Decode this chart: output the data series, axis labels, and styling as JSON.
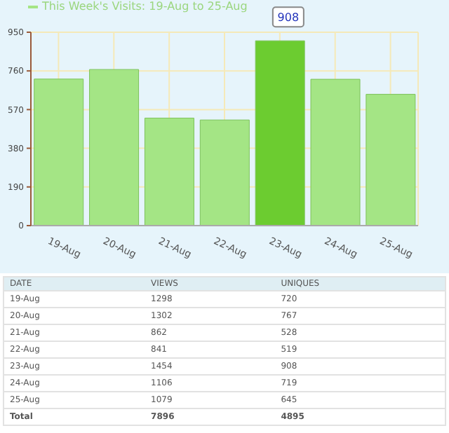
{
  "chart_data": [
    {
      "type": "bar",
      "categories": [
        "19-Aug",
        "20-Aug",
        "21-Aug",
        "22-Aug",
        "23-Aug",
        "24-Aug",
        "25-Aug"
      ],
      "series": [
        {
          "name": "This Week's Visits: 19-Aug to 25-Aug",
          "color": "#a4e585",
          "colors": [
            "#a4e585",
            "#a4e585",
            "#a4e585",
            "#a4e585",
            "#6ccc30",
            "#a4e585",
            "#a4e585"
          ],
          "values": [
            720,
            767,
            528,
            519,
            908,
            719,
            645
          ]
        }
      ],
      "ylim": [
        0,
        950
      ],
      "yticks": [
        0,
        190,
        380,
        570,
        760,
        950
      ],
      "grid": true,
      "legend": "top left",
      "annotations": [
        {
          "text": "908",
          "x": "23-Aug",
          "y": 908
        }
      ]
    },
    {
      "type": "other",
      "xlabel": "DATE",
      "data_labels": true,
      "categories": [
        "19-Aug",
        "20-Aug",
        "21-Aug",
        "22-Aug",
        "23-Aug",
        "24-Aug",
        "25-Aug",
        "Total"
      ],
      "series": [
        {
          "name": "VIEWS",
          "values": [
            1298,
            1302,
            862,
            841,
            1454,
            1106,
            1079,
            7896
          ]
        },
        {
          "name": "UNIQUES",
          "values": [
            720,
            767,
            528,
            519,
            908,
            719,
            645,
            4895
          ]
        }
      ]
    }
  ]
}
